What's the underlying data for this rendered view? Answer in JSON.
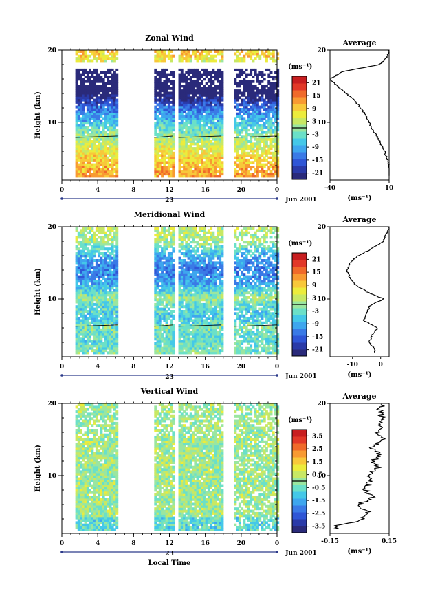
{
  "chart_data": [
    {
      "type": "heatmap",
      "title": "Zonal Wind",
      "ylabel": "Height (km)",
      "yticks": [
        "20",
        "10"
      ],
      "ylim": [
        2,
        20
      ],
      "xticks": [
        "0",
        "4",
        "8",
        "12",
        "16",
        "20",
        "0"
      ],
      "xlim": [
        0,
        24
      ],
      "date_label": "23",
      "month_label": "Jun 2001",
      "unit": "(ms⁻¹)",
      "colorbar_ticks": [
        "21",
        "15",
        "9",
        "3",
        "-3",
        "-9",
        "-15",
        "-21"
      ],
      "colorbar_range": [
        -24,
        24
      ],
      "data_segments_hours": [
        [
          1.5,
          6.2
        ],
        [
          10.3,
          12.4
        ],
        [
          13.0,
          17.8
        ],
        [
          19.2,
          24
        ]
      ],
      "profile_km": [
        3,
        4,
        5,
        6,
        7,
        8,
        9,
        10,
        11,
        12,
        13,
        14,
        15,
        16,
        17,
        18,
        19,
        20
      ],
      "profile_values": [
        12,
        10,
        8,
        6,
        3,
        0,
        -4,
        -7,
        -10,
        -14,
        -19,
        -26,
        -34,
        -40,
        -30,
        2,
        8,
        10
      ],
      "average": {
        "title": "Average",
        "xticks": [
          "-40",
          "10"
        ],
        "xlim": [
          -40,
          10
        ],
        "xunit": "(ms⁻¹)",
        "yticks": [
          "20",
          "10"
        ]
      }
    },
    {
      "type": "heatmap",
      "title": "Meridional Wind",
      "ylabel": "Height (km)",
      "yticks": [
        "20",
        "10"
      ],
      "ylim": [
        2,
        20
      ],
      "xticks": [
        "0",
        "4",
        "8",
        "12",
        "16",
        "20",
        "0"
      ],
      "xlim": [
        0,
        24
      ],
      "date_label": "23",
      "month_label": "Jun 2001",
      "unit": "(ms⁻¹)",
      "colorbar_ticks": [
        "21",
        "15",
        "9",
        "3",
        "-3",
        "-9",
        "-15",
        "-21"
      ],
      "colorbar_range": [
        -24,
        24
      ],
      "data_segments_hours": [
        [
          1.5,
          6.2
        ],
        [
          10.3,
          12.4
        ],
        [
          13.0,
          17.8
        ],
        [
          19.2,
          24
        ]
      ],
      "profile_km": [
        3,
        4,
        5,
        6,
        7,
        8,
        9,
        10,
        11,
        12,
        13,
        14,
        15,
        16,
        17,
        18,
        19,
        20
      ],
      "profile_values": [
        -2,
        -4,
        -3,
        -1,
        -6,
        -5,
        -4,
        1,
        -5,
        -9,
        -11,
        -12,
        -11,
        -8,
        -3,
        1,
        2,
        3
      ],
      "average": {
        "title": "Average",
        "xticks": [
          "-10",
          "0"
        ],
        "xlim": [
          -18,
          3
        ],
        "xunit": "(ms⁻¹)",
        "yticks": [
          "20",
          "10"
        ]
      }
    },
    {
      "type": "heatmap",
      "title": "Vertical Wind",
      "ylabel": "Height (km)",
      "xlabel": "Local Time",
      "yticks": [
        "20",
        "10"
      ],
      "ylim": [
        2,
        20
      ],
      "xticks": [
        "0",
        "4",
        "8",
        "12",
        "16",
        "20",
        "0"
      ],
      "xlim": [
        0,
        24
      ],
      "date_label": "23",
      "month_label": "Jun 2001",
      "unit": "(ms⁻¹)",
      "colorbar_ticks": [
        "3.5",
        "2.5",
        "1.5",
        "0.5",
        "-0.5",
        "-1.5",
        "-2.5",
        "-3.5"
      ],
      "colorbar_range": [
        -4,
        4
      ],
      "data_segments_hours": [
        [
          1.5,
          6.2
        ],
        [
          10.3,
          12.4
        ],
        [
          13.0,
          17.8
        ],
        [
          19.2,
          24
        ]
      ],
      "profile_km": [
        3,
        4,
        5,
        6,
        7,
        8,
        9,
        10,
        11,
        12,
        13,
        14,
        15,
        16,
        17,
        18,
        19,
        20
      ],
      "profile_values": [
        -0.12,
        0.02,
        0.04,
        0.0,
        0.06,
        0.03,
        0.05,
        0.04,
        0.09,
        0.07,
        0.1,
        0.06,
        0.12,
        0.09,
        0.11,
        0.12,
        0.1,
        0.12
      ],
      "average": {
        "title": "Average",
        "xticks": [
          "-0.15",
          "0.15"
        ],
        "xlim": [
          -0.15,
          0.15
        ],
        "xunit": "(ms⁻¹)",
        "yticks": [
          "20",
          "10"
        ]
      }
    }
  ]
}
